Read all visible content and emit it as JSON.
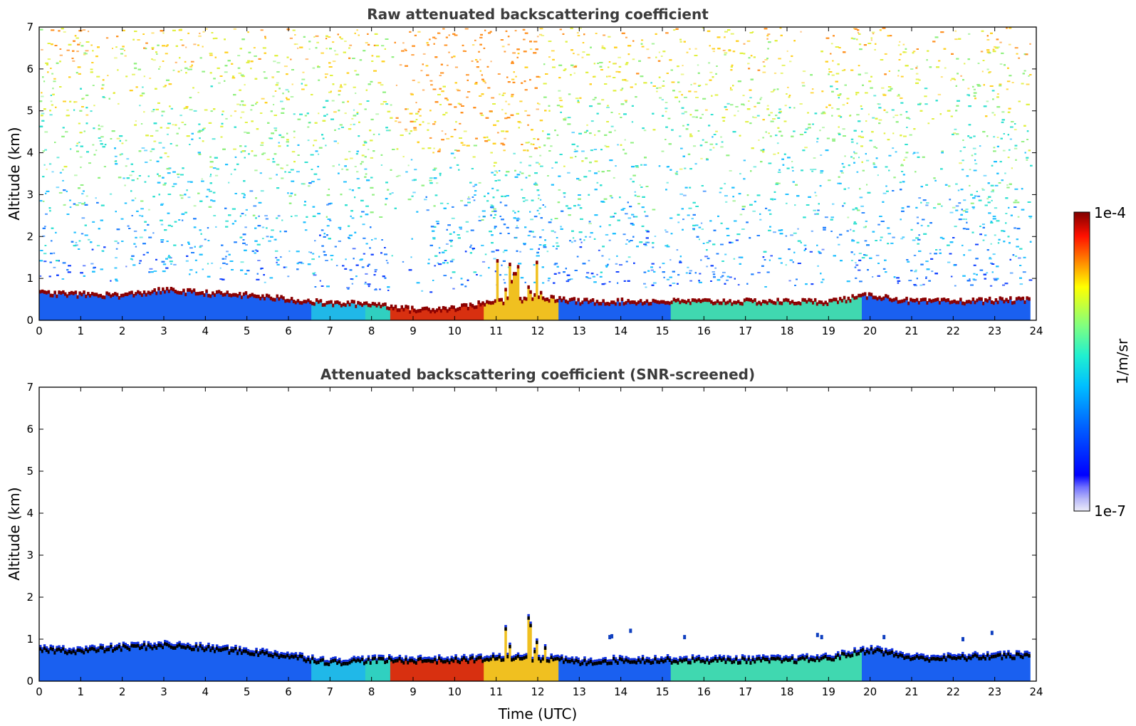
{
  "chart_data": [
    {
      "type": "heatmap",
      "title": "Raw attenuated backscattering coefficient",
      "xlabel": "",
      "ylabel": "Altitude (km)",
      "xlim": [
        0,
        24
      ],
      "ylim": [
        0,
        7
      ],
      "x_ticks": [
        0,
        1,
        2,
        3,
        4,
        5,
        6,
        7,
        8,
        9,
        10,
        11,
        12,
        13,
        14,
        15,
        16,
        17,
        18,
        19,
        20,
        21,
        22,
        23,
        24
      ],
      "y_ticks": [
        0,
        1,
        2,
        3,
        4,
        5,
        6,
        7
      ],
      "boundary_layer_top_km": {
        "time_utc": [
          0,
          1,
          2,
          3,
          4,
          5,
          6,
          7,
          8,
          9,
          10,
          11,
          12,
          13,
          14,
          15,
          16,
          17,
          18,
          19,
          20,
          21,
          22,
          23,
          24
        ],
        "altitude": [
          0.65,
          0.62,
          0.6,
          0.72,
          0.65,
          0.6,
          0.5,
          0.4,
          0.4,
          0.25,
          0.3,
          0.45,
          0.55,
          0.45,
          0.45,
          0.45,
          0.45,
          0.45,
          0.45,
          0.45,
          0.6,
          0.45,
          0.45,
          0.48,
          0.48
        ]
      },
      "noise": "noisy signal above the boundary layer throughout, strongest near 9-12 UTC"
    },
    {
      "type": "heatmap",
      "title": "Attenuated backscattering coefficient (SNR-screened)",
      "xlabel": "Time (UTC)",
      "ylabel": "Altitude (km)",
      "xlim": [
        0,
        24
      ],
      "ylim": [
        0,
        7
      ],
      "x_ticks": [
        0,
        1,
        2,
        3,
        4,
        5,
        6,
        7,
        8,
        9,
        10,
        11,
        12,
        13,
        14,
        15,
        16,
        17,
        18,
        19,
        20,
        21,
        22,
        23,
        24
      ],
      "y_ticks": [
        0,
        1,
        2,
        3,
        4,
        5,
        6,
        7
      ],
      "boundary_layer_top_km": {
        "time_utc": [
          0,
          1,
          2,
          3,
          4,
          5,
          6,
          7,
          8,
          9,
          10,
          11,
          12,
          13,
          14,
          15,
          16,
          17,
          18,
          19,
          20,
          21,
          22,
          23,
          24
        ],
        "altitude": [
          0.75,
          0.72,
          0.8,
          0.85,
          0.78,
          0.7,
          0.6,
          0.45,
          0.5,
          0.5,
          0.5,
          0.55,
          0.55,
          0.45,
          0.5,
          0.5,
          0.5,
          0.5,
          0.5,
          0.55,
          0.75,
          0.55,
          0.55,
          0.6,
          0.6
        ]
      },
      "noise": "signal above the boundary layer removed by screening"
    }
  ],
  "colorbar": {
    "label": "1/m/sr",
    "max_label": "1e-4",
    "min_label": "1e-7",
    "scale": "log",
    "colormap": [
      "#e8e8f8",
      "#7070ff",
      "#0000ff",
      "#0080ff",
      "#00ffff",
      "#80ff80",
      "#ffff00",
      "#ff8000",
      "#ff0000",
      "#800000"
    ]
  },
  "colors": {
    "low": "#1a5cff",
    "high": "#cc1a00",
    "bl_edge": "#8b0000",
    "screened_edge": "#000000"
  }
}
